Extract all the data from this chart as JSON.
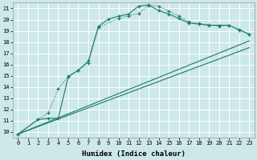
{
  "xlabel": "Humidex (Indice chaleur)",
  "bg_color": "#cce8e8",
  "grid_color": "#ffffff",
  "line_color": "#1a7a6a",
  "xlim": [
    -0.5,
    23.5
  ],
  "ylim": [
    9.5,
    21.5
  ],
  "xticks": [
    0,
    1,
    2,
    3,
    4,
    5,
    6,
    7,
    8,
    9,
    10,
    11,
    12,
    13,
    14,
    15,
    16,
    17,
    18,
    19,
    20,
    21,
    22,
    23
  ],
  "yticks": [
    10,
    11,
    12,
    13,
    14,
    15,
    16,
    17,
    18,
    19,
    20,
    21
  ],
  "curve1_x": [
    0,
    2,
    3,
    4,
    5,
    6,
    7,
    8,
    9,
    10,
    11,
    12,
    13,
    14,
    15,
    16,
    17,
    18,
    19,
    20,
    21,
    22,
    23
  ],
  "curve1_y": [
    9.8,
    11.1,
    11.2,
    11.2,
    14.9,
    15.5,
    16.3,
    19.4,
    20.05,
    20.3,
    20.5,
    21.2,
    21.3,
    20.8,
    20.5,
    20.1,
    19.7,
    19.6,
    19.5,
    19.5,
    19.5,
    19.1,
    18.7
  ],
  "curve2_x": [
    0,
    2,
    3,
    4,
    5,
    6,
    7,
    8,
    10,
    11,
    12,
    13,
    14,
    15,
    16,
    17,
    18,
    19,
    20,
    21,
    22,
    23
  ],
  "curve2_y": [
    9.8,
    11.1,
    11.7,
    13.8,
    14.95,
    15.5,
    16.15,
    19.3,
    20.1,
    20.35,
    20.55,
    21.25,
    21.2,
    20.75,
    20.3,
    19.8,
    19.65,
    19.55,
    19.4,
    19.5,
    19.05,
    18.7
  ],
  "line1_x": [
    0,
    23
  ],
  "line1_y": [
    9.8,
    18.1
  ],
  "line2_x": [
    0,
    23
  ],
  "line2_y": [
    9.8,
    17.5
  ]
}
